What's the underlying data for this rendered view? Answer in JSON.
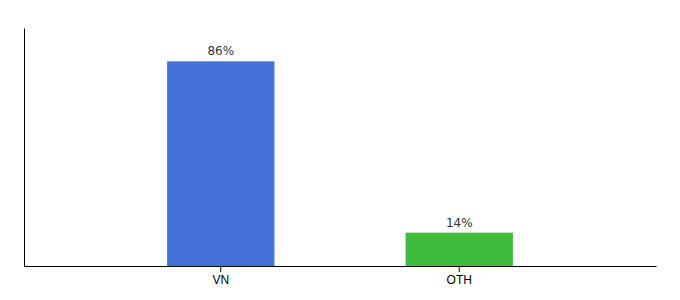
{
  "chart_data": {
    "type": "bar",
    "categories": [
      "VN",
      "OTH"
    ],
    "values": [
      86,
      14
    ],
    "value_labels": [
      "86%",
      "14%"
    ],
    "colors": [
      "#4472db",
      "#3ebc3e"
    ],
    "ylim": [
      0,
      100
    ],
    "data_labels": true,
    "tick_labels": "x"
  }
}
